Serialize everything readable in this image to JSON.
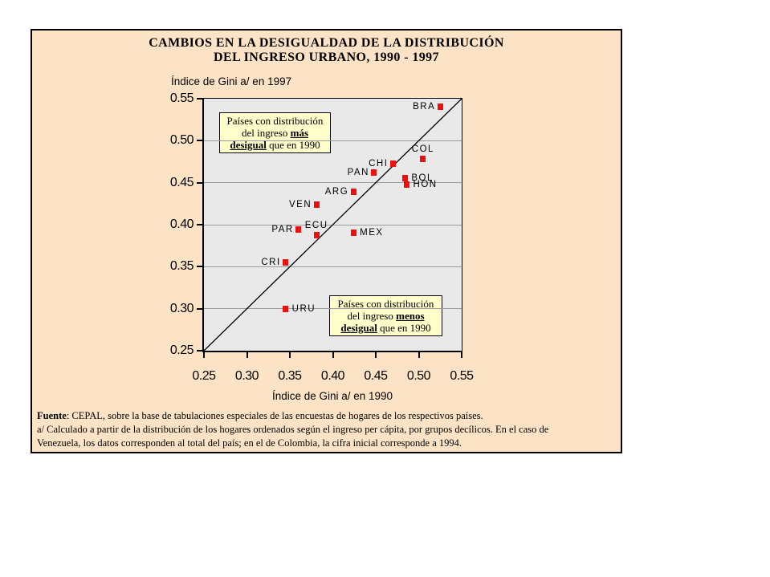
{
  "colors": {
    "panel_bg": "#fde3c6",
    "plot_bg": "#e9e9e9",
    "grid_color": "#9b9b9b",
    "point_color": "#ee0f0f",
    "annotation_box_bg": "#ffffcb",
    "text_color": "#000000"
  },
  "title": {
    "line1": "CAMBIOS EN LA DESIGUALDAD DE LA DISTRIBUCIÓN",
    "line2": "DEL INGRESO URBANO, 1990 - 1997"
  },
  "chart_data": {
    "type": "scatter",
    "title": "CAMBIOS EN LA DESIGUALDAD DE LA DISTRIBUCIÓN DEL INGRESO URBANO, 1990 - 1997",
    "xlabel": "Índice de Gini a/ en 1990",
    "ylabel": "Índice de Gini a/ en 1997",
    "xlim": [
      0.25,
      0.55
    ],
    "ylim": [
      0.25,
      0.55
    ],
    "grid": true,
    "y_gridlines": [
      0.3,
      0.35,
      0.4,
      0.45,
      0.5
    ],
    "axis_ticks": [
      {
        "v": 0.25,
        "label": "0.25"
      },
      {
        "v": 0.3,
        "label": "0.30"
      },
      {
        "v": 0.35,
        "label": "0.35"
      },
      {
        "v": 0.4,
        "label": "0.40"
      },
      {
        "v": 0.45,
        "label": "0.45"
      },
      {
        "v": 0.5,
        "label": "0.50"
      },
      {
        "v": 0.55,
        "label": "0.55"
      }
    ],
    "reference_line": "diagonal y = x from (0.25,0.25) to (0.55,0.55)",
    "points": [
      {
        "label": "BRA",
        "gini_1990": 0.525,
        "gini_1997": 0.54,
        "label_pos": "left"
      },
      {
        "label": "COL",
        "gini_1990": 0.505,
        "gini_1997": 0.478,
        "label_pos": "above"
      },
      {
        "label": "CHI",
        "gini_1990": 0.47,
        "gini_1997": 0.473,
        "label_pos": "left"
      },
      {
        "label": "PAN",
        "gini_1990": 0.448,
        "gini_1997": 0.462,
        "label_pos": "left"
      },
      {
        "label": "BOL",
        "gini_1990": 0.484,
        "gini_1997": 0.455,
        "label_pos": "right"
      },
      {
        "label": "HON",
        "gini_1990": 0.486,
        "gini_1997": 0.448,
        "label_pos": "right"
      },
      {
        "label": "ARG",
        "gini_1990": 0.424,
        "gini_1997": 0.439,
        "label_pos": "left"
      },
      {
        "label": "VEN",
        "gini_1990": 0.381,
        "gini_1997": 0.424,
        "label_pos": "left"
      },
      {
        "label": "PAR",
        "gini_1990": 0.36,
        "gini_1997": 0.394,
        "label_pos": "left"
      },
      {
        "label": "ECU",
        "gini_1990": 0.381,
        "gini_1997": 0.388,
        "label_pos": "above"
      },
      {
        "label": "MEX",
        "gini_1990": 0.424,
        "gini_1997": 0.39,
        "label_pos": "right"
      },
      {
        "label": "CRI",
        "gini_1990": 0.345,
        "gini_1997": 0.355,
        "label_pos": "left"
      },
      {
        "label": "URU",
        "gini_1990": 0.345,
        "gini_1997": 0.3,
        "label_pos": "right"
      }
    ],
    "annotations": [
      "Países con distribución del ingreso más desigual que en 1990",
      "Países con distribución del ingreso menos desigual que en 1990"
    ]
  },
  "annotation_more": {
    "before": "Países con distribución del ingreso ",
    "emph1": "más",
    "mid": " ",
    "emph2": "desigual",
    "after": " que en 1990"
  },
  "annotation_less": {
    "before": "Países con distribución del ingreso ",
    "emph1": "menos",
    "mid": " ",
    "emph2": "desigual",
    "after": " que en 1990"
  },
  "footer": {
    "source_bold": "Fuente",
    "line1_rest": ": CEPAL, sobre la base de tabulaciones especiales de las encuestas de hogares de los respectivos países.",
    "line2": "a/ Calculado a partir de la distribución de los hogares ordenados según el ingreso per cápita, por grupos decílicos. En el caso de",
    "line3": "Venezuela, los datos corresponden al total del país; en el de Colombia, la cifra inicial corresponde a 1994."
  }
}
